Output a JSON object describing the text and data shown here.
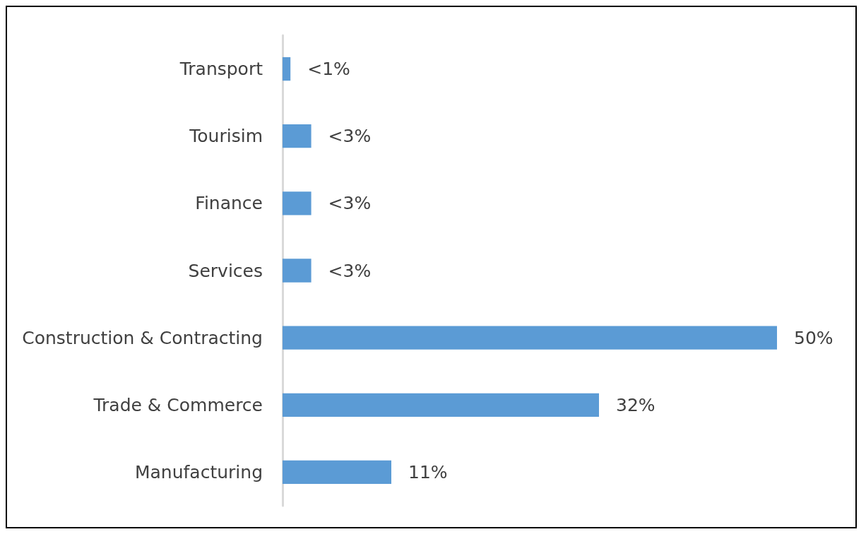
{
  "chart_data": {
    "type": "bar",
    "orientation": "horizontal",
    "categories": [
      "Transport",
      "Tourisim",
      "Finance",
      "Services",
      "Construction & Contracting",
      "Trade & Commerce",
      "Manufacturing"
    ],
    "values": [
      0.8,
      2.9,
      2.9,
      2.9,
      50,
      32,
      11
    ],
    "value_labels": [
      "<1%",
      "<3%",
      "<3%",
      "<3%",
      "50%",
      "32%",
      "11%"
    ],
    "color": "#5b9bd5"
  }
}
